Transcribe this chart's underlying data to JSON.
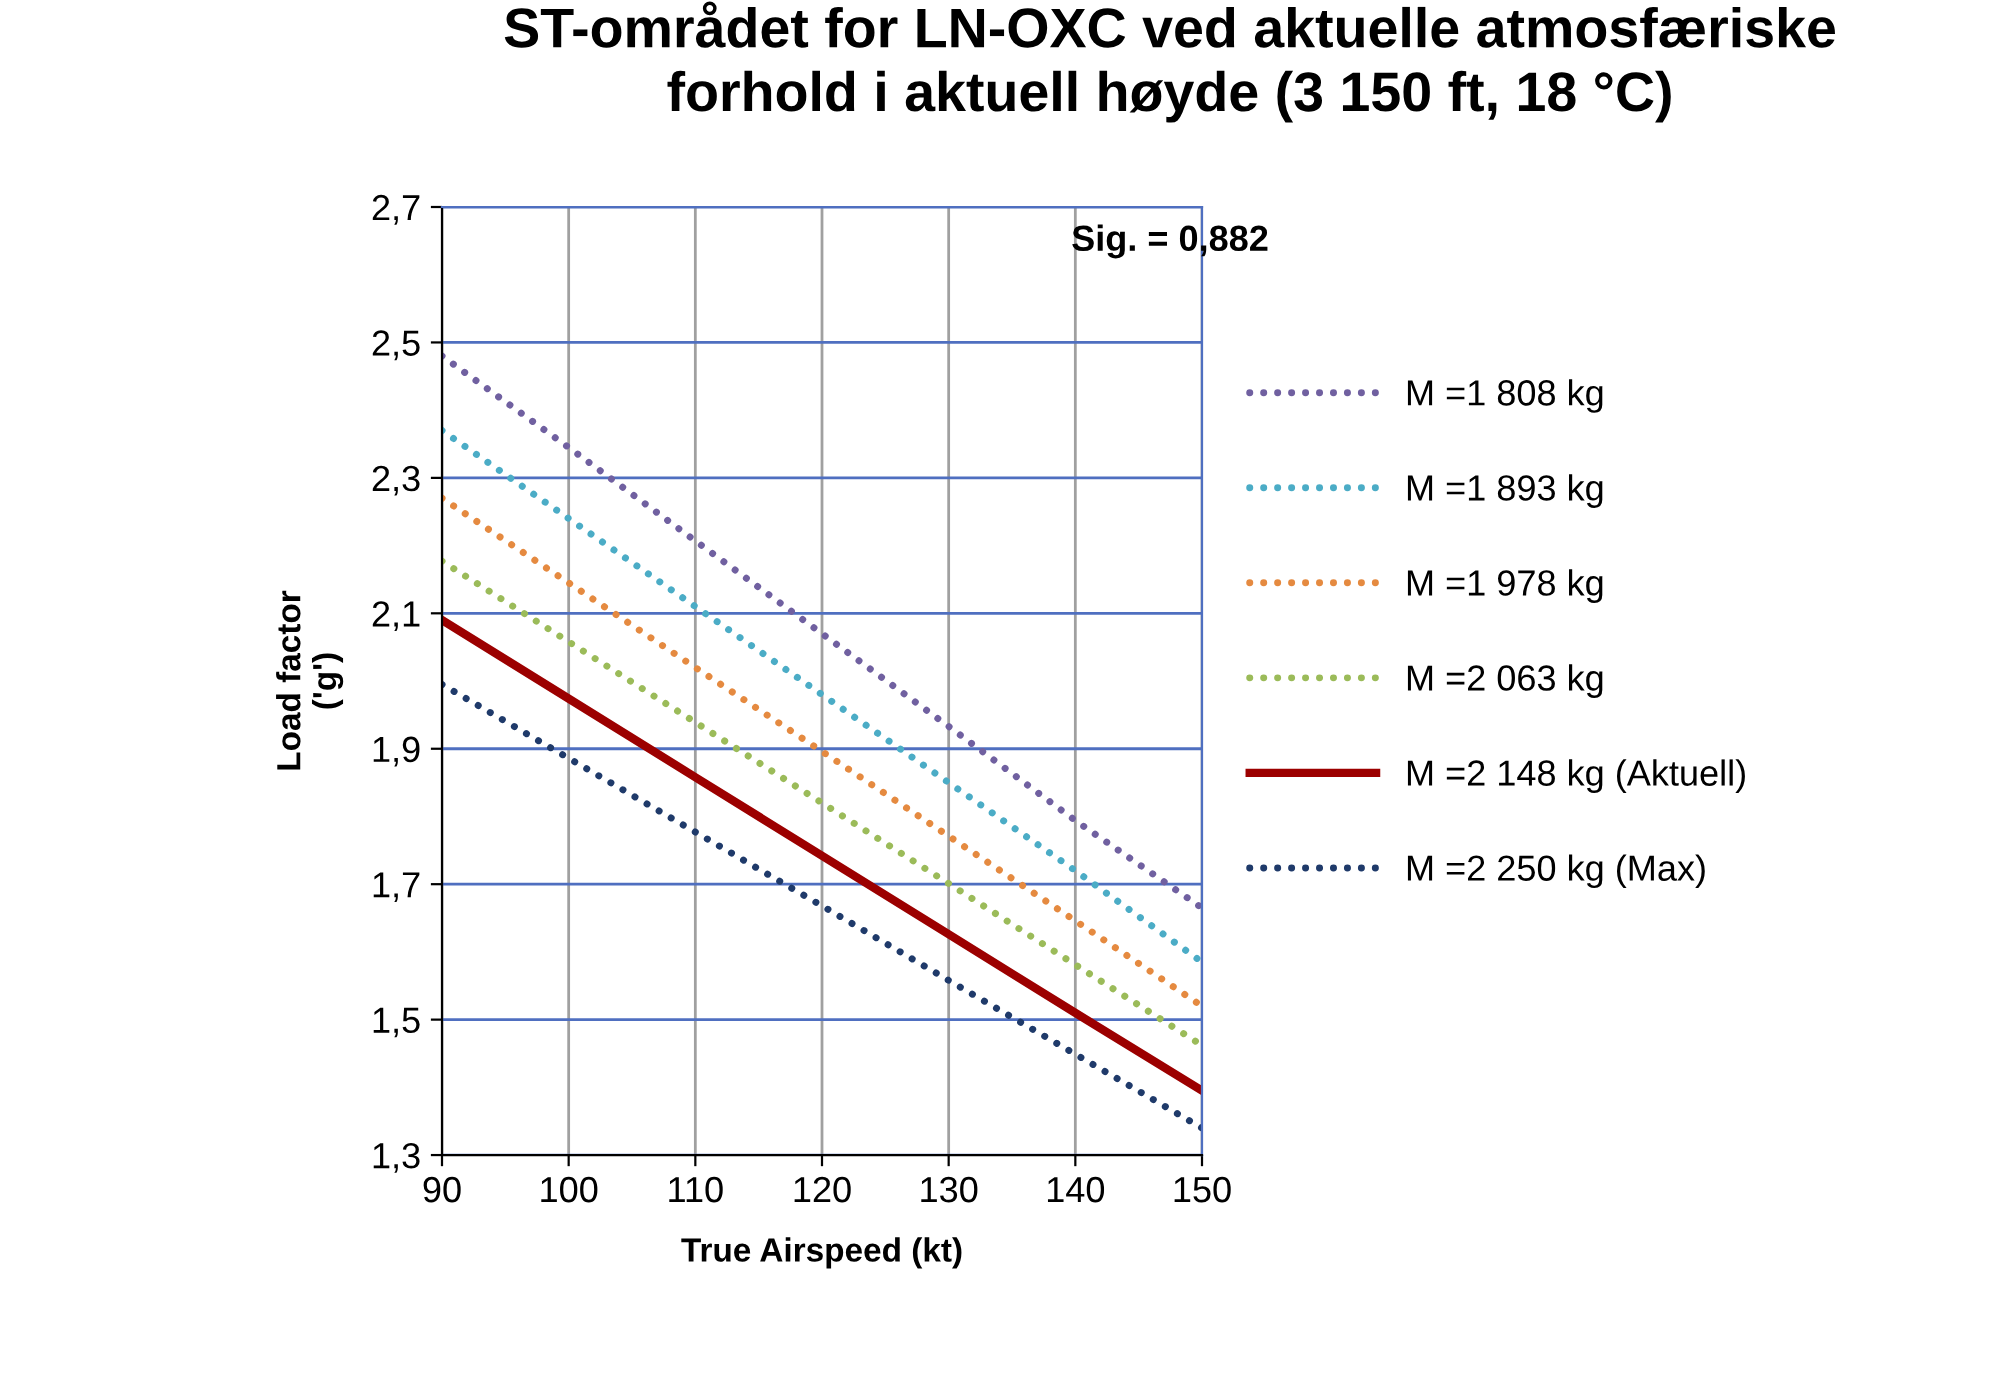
{
  "chart_data": {
    "type": "line",
    "title": "ST-området for LN-OXC ved aktuelle atmosfæriske\nforhold i aktuell høyde (3 150 ft, 18 °C)",
    "xlabel": "True Airspeed (kt)",
    "ylabel": "Load factor\n('g')",
    "annotations": [
      "Sig. = 0,882"
    ],
    "x": [
      90,
      100,
      110,
      120,
      130,
      140,
      150
    ],
    "series": [
      {
        "name": "M =1 808 kg",
        "color": "#7060a0",
        "line_style": "dotted",
        "values": [
          2.48,
          2.345,
          2.207,
          2.07,
          1.933,
          1.794,
          1.665
        ]
      },
      {
        "name": "M =1 893 kg",
        "color": "#4bacc6",
        "line_style": "dotted",
        "values": [
          2.37,
          2.24,
          2.11,
          1.98,
          1.85,
          1.72,
          1.585
        ]
      },
      {
        "name": "M =1 978 kg",
        "color": "#e58a40",
        "line_style": "dotted",
        "values": [
          2.27,
          2.145,
          2.02,
          1.896,
          1.771,
          1.646,
          1.52
        ]
      },
      {
        "name": "M =2 063 kg",
        "color": "#9bbb59",
        "line_style": "dotted",
        "values": [
          2.177,
          2.058,
          1.939,
          1.82,
          1.701,
          1.581,
          1.462
        ]
      },
      {
        "name": "M =2 148 kg (Aktuell)",
        "color": "#9c0000",
        "line_style": "solid",
        "values": [
          2.09,
          1.974,
          1.858,
          1.742,
          1.626,
          1.51,
          1.395
        ]
      },
      {
        "name": "M =2 250 kg (Max)",
        "color": "#1f3a6a",
        "line_style": "dotted",
        "values": [
          1.995,
          1.886,
          1.777,
          1.668,
          1.558,
          1.449,
          1.34
        ]
      }
    ],
    "xlim": [
      90,
      150
    ],
    "xticks": [
      90,
      100,
      110,
      120,
      130,
      140,
      150
    ],
    "ylim": [
      1.3,
      2.7
    ],
    "yticks": [
      {
        "value": 1.3,
        "label": "1,3"
      },
      {
        "value": 1.5,
        "label": "1,5"
      },
      {
        "value": 1.7,
        "label": "1,7"
      },
      {
        "value": 1.9,
        "label": "1,9"
      },
      {
        "value": 2.1,
        "label": "2,1"
      },
      {
        "value": 2.3,
        "label": "2,3"
      },
      {
        "value": 2.5,
        "label": "2,5"
      },
      {
        "value": 2.7,
        "label": "2,7"
      }
    ],
    "grid": true,
    "legend": "right",
    "marker": "none"
  }
}
